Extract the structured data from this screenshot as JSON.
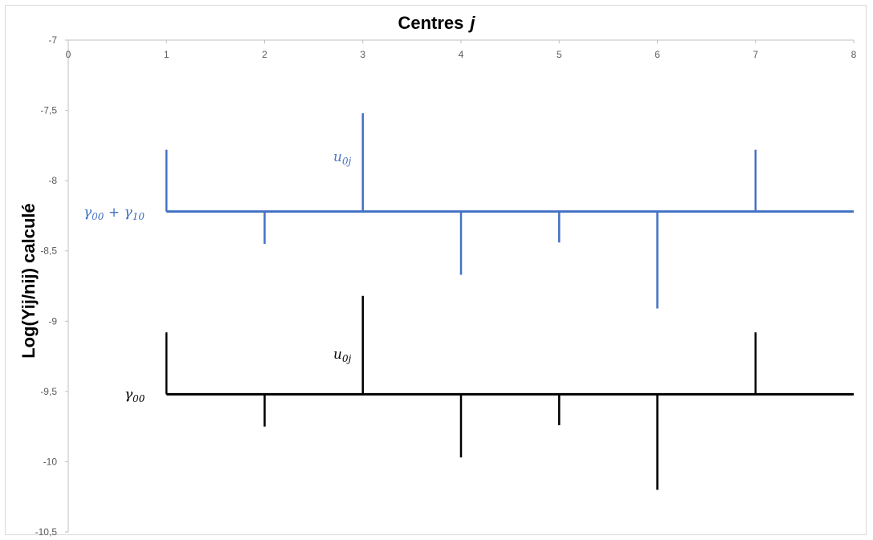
{
  "chart_data": {
    "type": "line",
    "title": "Centres",
    "title_symbol": "j",
    "xlabel": "",
    "ylabel": "Log(Yij/nij) calculé",
    "xlim": [
      0,
      8
    ],
    "ylim": [
      -10.5,
      -7
    ],
    "x_ticks": [
      "0",
      "1",
      "2",
      "3",
      "4",
      "5",
      "6",
      "7",
      "8"
    ],
    "y_ticks": [
      "-7",
      "-7,5",
      "-8",
      "-8,5",
      "-9",
      "-9,5",
      "-10",
      "-10,5"
    ],
    "x_axis_position": "top",
    "grid": false,
    "series": [
      {
        "color": "#4472c4",
        "baseline": -8.22,
        "baseline_x": [
          1,
          8
        ],
        "deviations": [
          {
            "x": 1,
            "y": -7.78
          },
          {
            "x": 2,
            "y": -8.45
          },
          {
            "x": 3,
            "y": -7.52
          },
          {
            "x": 4,
            "y": -8.67
          },
          {
            "x": 5,
            "y": -8.44
          },
          {
            "x": 6,
            "y": -8.91
          },
          {
            "x": 7,
            "y": -7.78
          }
        ]
      },
      {
        "color": "#000000",
        "baseline": -9.52,
        "baseline_x": [
          1,
          8
        ],
        "deviations": [
          {
            "x": 1,
            "y": -9.08
          },
          {
            "x": 2,
            "y": -9.75
          },
          {
            "x": 3,
            "y": -8.82
          },
          {
            "x": 4,
            "y": -9.97
          },
          {
            "x": 5,
            "y": -9.74
          },
          {
            "x": 6,
            "y": -10.2
          },
          {
            "x": 7,
            "y": -9.08
          }
        ]
      }
    ],
    "annotations": {
      "blue_baseline": {
        "g1": "γ",
        "g1_sub": "00",
        "plus": " + ",
        "g2": "γ",
        "g2_sub": "10"
      },
      "blue_deviation": {
        "u": "u",
        "u_sub": "0j"
      },
      "black_baseline": {
        "g": "γ",
        "g_sub": "00"
      },
      "black_deviation": {
        "u": "u",
        "u_sub": "0j"
      }
    }
  }
}
